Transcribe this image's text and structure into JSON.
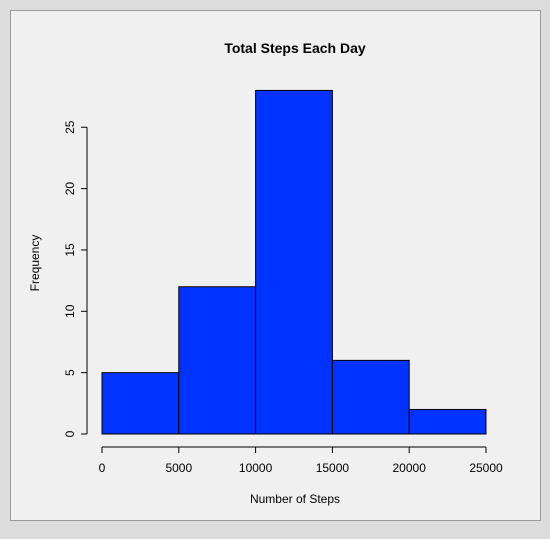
{
  "chart_data": {
    "type": "bar",
    "title": "Total Steps Each Day",
    "xlabel": "Number of Steps",
    "ylabel": "Frequency",
    "bin_edges": [
      0,
      5000,
      10000,
      15000,
      20000,
      25000
    ],
    "values": [
      5,
      12,
      28,
      6,
      2
    ],
    "xlim": [
      0,
      25000
    ],
    "ylim": [
      0,
      28
    ],
    "x_ticks": [
      0,
      5000,
      10000,
      15000,
      20000,
      25000
    ],
    "y_ticks": [
      0,
      5,
      10,
      15,
      20,
      25
    ],
    "grid": false,
    "colors": {
      "bar_fill": "#0033ff",
      "bar_stroke": "#000000",
      "axis": "#000000"
    }
  }
}
